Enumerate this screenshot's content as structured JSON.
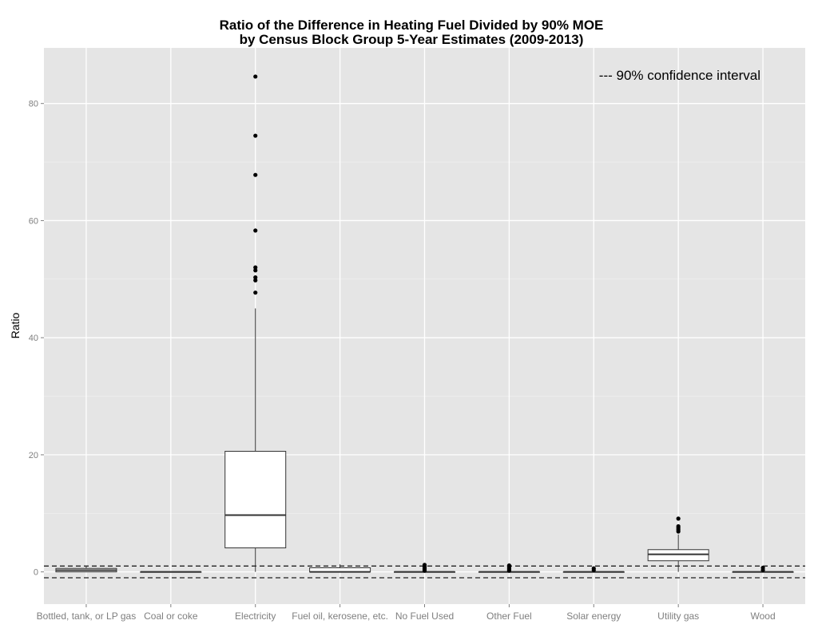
{
  "chart_data": {
    "type": "box",
    "title": "Ratio of the Difference in Heating Fuel Divided by 90% MOE",
    "subtitle": "by Census Block Group 5-Year Estimates (2009-2013)",
    "xlabel": "",
    "ylabel": "Ratio",
    "ylim": [
      -5.5,
      89.5
    ],
    "yticks": [
      0,
      20,
      40,
      60,
      80
    ],
    "grid": true,
    "annotation": "--- 90% confidence interval",
    "reference_lines": [
      1,
      -1
    ],
    "categories": [
      "Bottled, tank, or LP gas",
      "Coal or coke",
      "Electricity",
      "Fuel oil, kerosene, etc.",
      "No Fuel Used",
      "Other Fuel",
      "Solar energy",
      "Utility gas",
      "Wood"
    ],
    "boxes": [
      {
        "min": 0,
        "q1": 0,
        "median": 0.3,
        "q3": 0.6,
        "max": 1.0,
        "outliers": []
      },
      {
        "min": 0,
        "q1": 0,
        "median": 0,
        "q3": 0,
        "max": 0,
        "outliers": []
      },
      {
        "min": 0,
        "q1": 4.1,
        "median": 9.7,
        "q3": 20.6,
        "max": 45,
        "outliers": [
          47.7,
          49.8,
          50.3,
          51.5,
          52,
          58.3,
          67.8,
          74.5,
          84.6
        ]
      },
      {
        "min": 0,
        "q1": 0,
        "median": 0,
        "q3": 0.7,
        "max": 1.3,
        "outliers": []
      },
      {
        "min": 0,
        "q1": 0,
        "median": 0,
        "q3": 0,
        "max": 0,
        "outliers": [
          0.2,
          0.4,
          0.6,
          0.8,
          1.0,
          1.2
        ]
      },
      {
        "min": 0,
        "q1": 0,
        "median": 0,
        "q3": 0,
        "max": 0,
        "outliers": [
          0.2,
          0.4,
          0.6,
          0.8,
          1.0,
          1.1
        ]
      },
      {
        "min": 0,
        "q1": 0,
        "median": 0,
        "q3": 0,
        "max": 0,
        "outliers": [
          0.3,
          0.6
        ]
      },
      {
        "min": 0,
        "q1": 1.9,
        "median": 3.0,
        "q3": 3.8,
        "max": 6.4,
        "outliers": [
          6.9,
          7.2,
          7.5,
          7.8,
          9.1
        ]
      },
      {
        "min": 0,
        "q1": 0,
        "median": 0,
        "q3": 0,
        "max": 0,
        "outliers": [
          0.3,
          0.7
        ]
      }
    ]
  }
}
